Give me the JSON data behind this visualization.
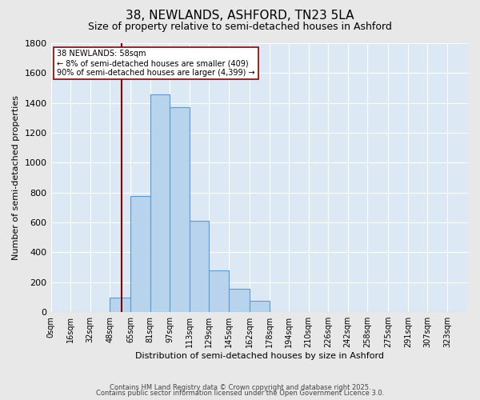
{
  "title": "38, NEWLANDS, ASHFORD, TN23 5LA",
  "subtitle": "Size of property relative to semi-detached houses in Ashford",
  "xlabel": "Distribution of semi-detached houses by size in Ashford",
  "ylabel": "Number of semi-detached properties",
  "annotation_title": "38 NEWLANDS: 58sqm",
  "annotation_line1": "← 8% of semi-detached houses are smaller (409)",
  "annotation_line2": "90% of semi-detached houses are larger (4,399) →",
  "property_size": 58,
  "bin_starts": [
    0,
    16,
    32,
    48,
    65,
    81,
    97,
    113,
    129,
    145,
    162,
    178,
    194,
    210,
    226,
    242,
    258,
    275,
    291,
    307,
    323
  ],
  "bin_labels": [
    "0sqm",
    "16sqm",
    "32sqm",
    "48sqm",
    "65sqm",
    "81sqm",
    "97sqm",
    "113sqm",
    "129sqm",
    "145sqm",
    "162sqm",
    "178sqm",
    "194sqm",
    "210sqm",
    "226sqm",
    "242sqm",
    "258sqm",
    "275sqm",
    "291sqm",
    "307sqm",
    "323sqm"
  ],
  "counts": [
    0,
    0,
    0,
    95,
    775,
    1455,
    1370,
    610,
    280,
    155,
    75,
    0,
    0,
    0,
    0,
    0,
    0,
    0,
    0,
    0,
    0
  ],
  "bar_color": "#b8d4ec",
  "bar_edge_color": "#5b9bd5",
  "vline_color": "#8b0000",
  "annotation_box_color": "#ffffff",
  "annotation_box_edge": "#8b0000",
  "background_color": "#dce9f5",
  "grid_color": "#ffffff",
  "fig_bg_color": "#e8e8e8",
  "ylim": [
    0,
    1800
  ],
  "yticks": [
    0,
    200,
    400,
    600,
    800,
    1000,
    1200,
    1400,
    1600,
    1800
  ],
  "footer_line1": "Contains HM Land Registry data © Crown copyright and database right 2025.",
  "footer_line2": "Contains public sector information licensed under the Open Government Licence 3.0."
}
